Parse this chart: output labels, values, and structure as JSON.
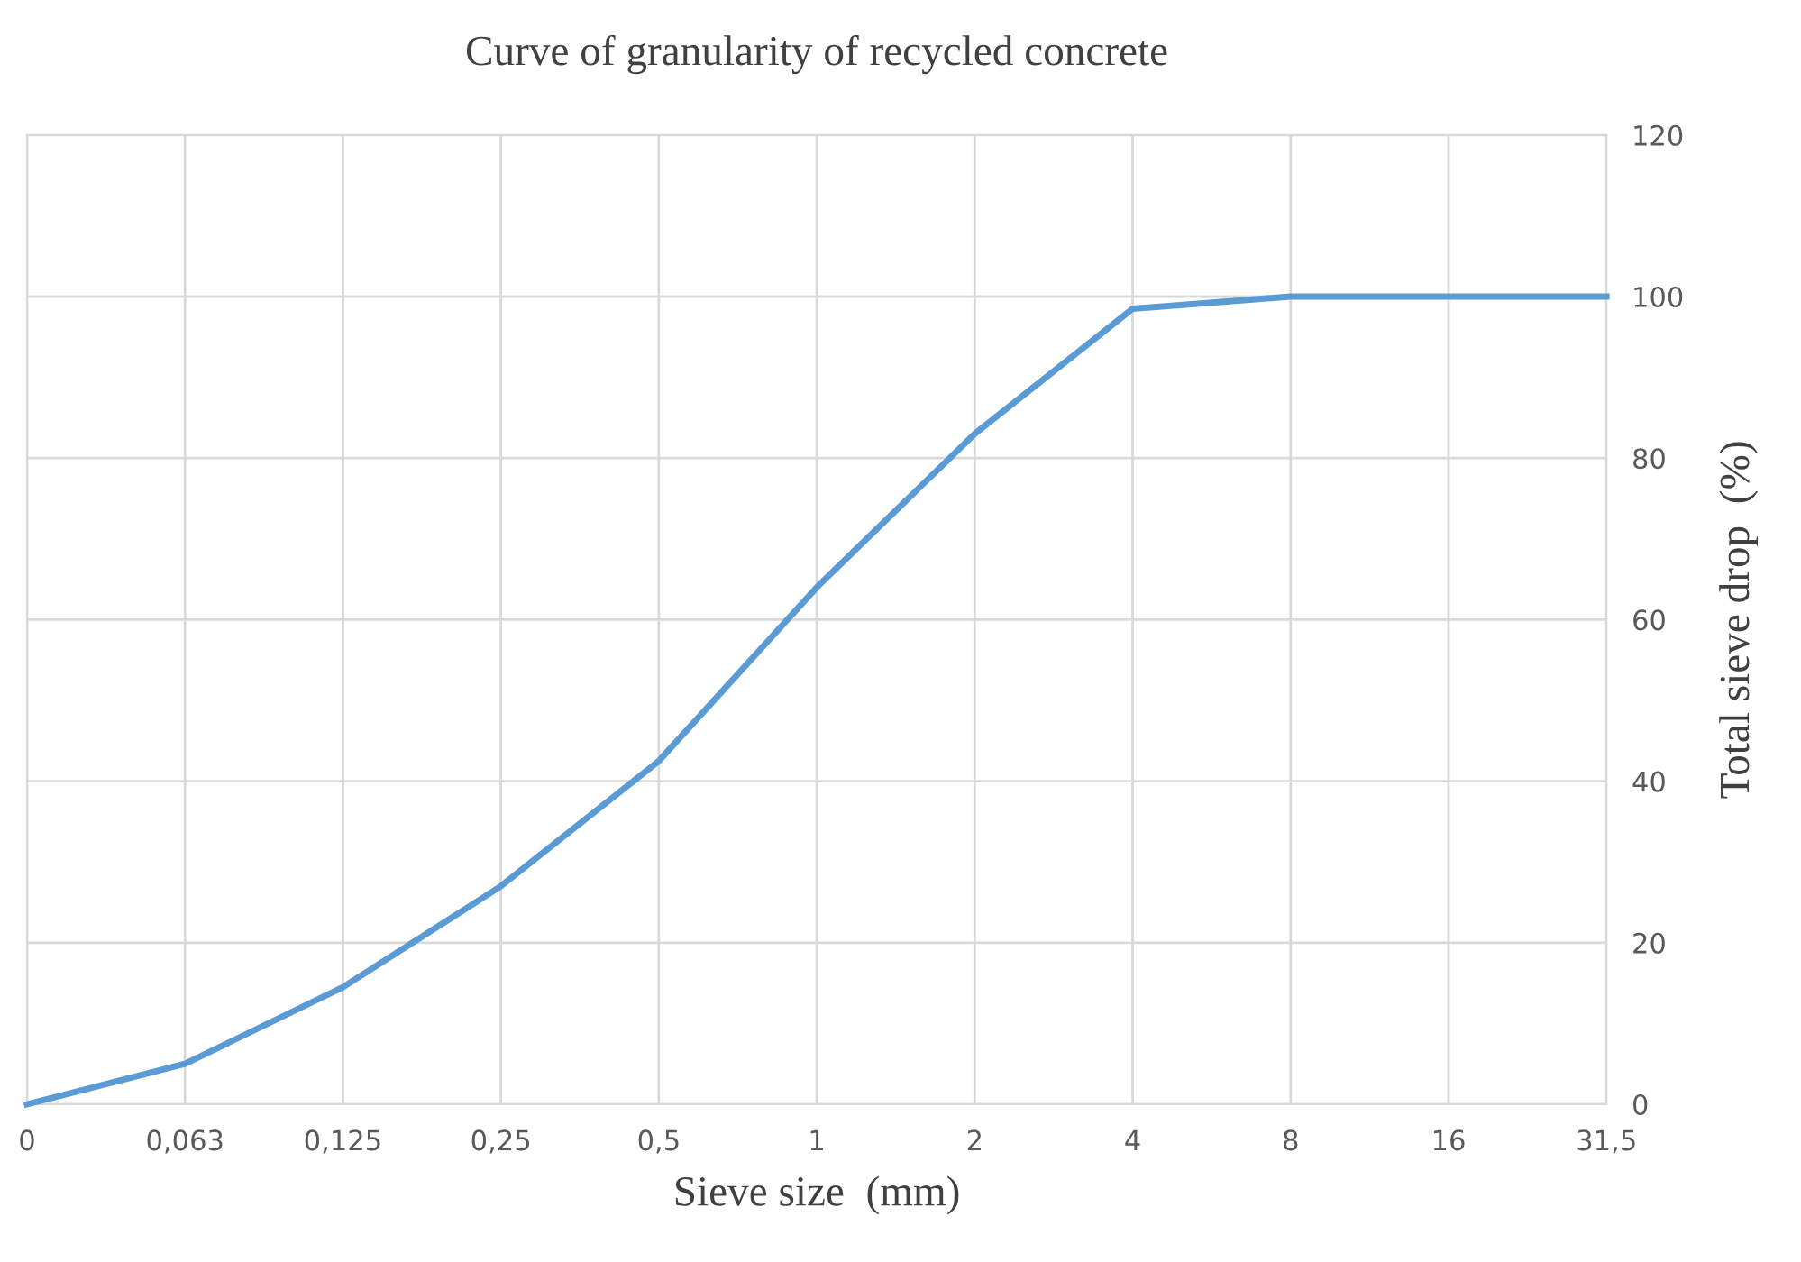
{
  "chart_data": {
    "type": "line",
    "title": "Curve of granularity of recycled concrete",
    "xlabel": "Sieve size  (mm)",
    "ylabel": "Total sieve drop  (%)",
    "categories": [
      "0",
      "0,063",
      "0,125",
      "0,25",
      "0,5",
      "1",
      "2",
      "4",
      "8",
      "16",
      "31,5"
    ],
    "series": [
      {
        "color": "#5b9bd5",
        "values": [
          0,
          5,
          14.5,
          27,
          42.5,
          64,
          83,
          98.5,
          100,
          100,
          100
        ]
      }
    ],
    "ylim": [
      0,
      120
    ],
    "yticks": [
      0,
      20,
      40,
      60,
      80,
      100,
      120
    ],
    "grid": true,
    "marker": "none",
    "line_style": "solid"
  }
}
